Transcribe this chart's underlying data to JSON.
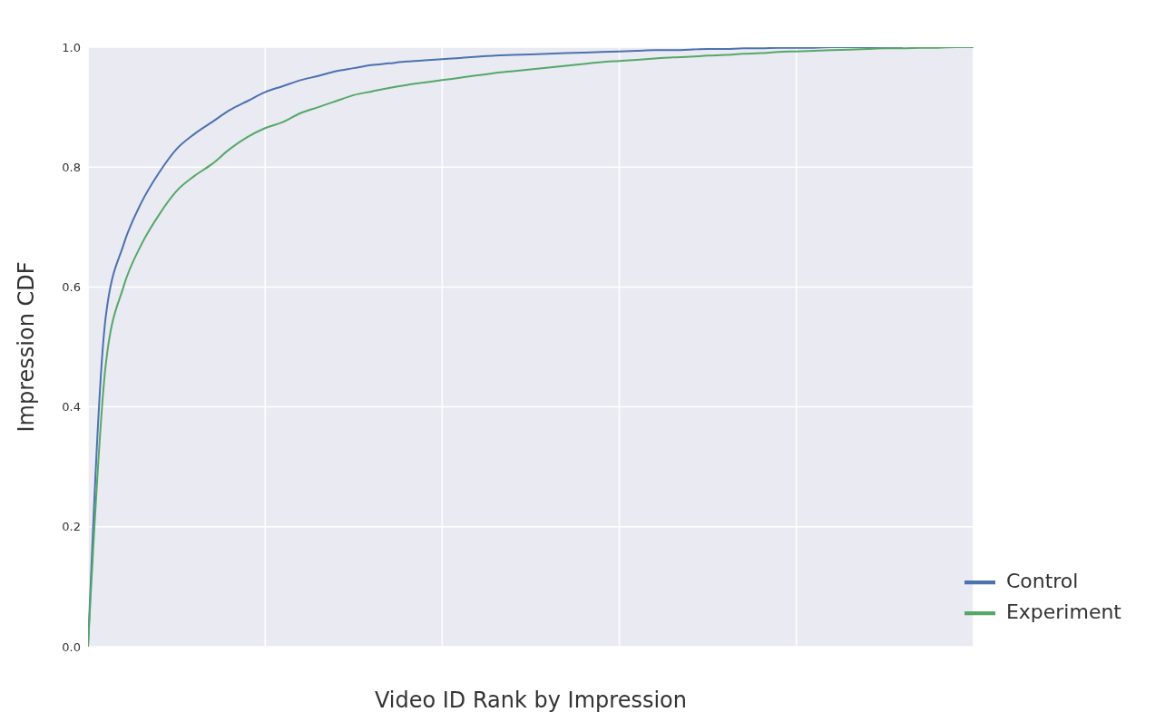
{
  "chart_data": {
    "type": "line",
    "xlabel": "Video ID Rank by Impression",
    "ylabel": "Impression CDF",
    "categories": [
      null,
      null,
      null,
      null,
      null,
      null,
      null,
      null,
      null,
      null,
      null,
      null,
      null,
      null,
      null,
      null,
      null,
      null,
      null,
      null,
      null,
      null,
      null,
      null,
      null,
      null,
      null,
      null,
      null,
      null,
      null,
      null,
      null,
      null,
      null,
      null,
      null,
      null,
      null,
      null,
      null,
      null,
      null,
      null,
      null,
      null,
      null,
      null,
      null,
      null,
      null
    ],
    "series": [
      {
        "name": "Control",
        "color": "#4c72b0",
        "values": [
          0,
          0.55,
          0.67,
          0.74,
          0.79,
          0.83,
          0.855,
          0.875,
          0.895,
          0.91,
          0.925,
          0.935,
          0.945,
          0.952,
          0.96,
          0.965,
          0.97,
          0.973,
          0.976,
          0.978,
          0.98,
          0.982,
          0.984,
          0.986,
          0.987,
          0.988,
          0.989,
          0.99,
          0.991,
          0.992,
          0.993,
          0.994,
          0.995,
          0.995,
          0.996,
          0.997,
          0.997,
          0.998,
          0.998,
          0.999,
          0.999,
          0.999,
          1,
          1,
          1,
          1,
          1,
          null,
          null,
          null,
          null
        ]
      },
      {
        "name": "Experiment",
        "color": "#55a868",
        "values": [
          0,
          0.47,
          0.6,
          0.67,
          0.72,
          0.76,
          0.785,
          0.805,
          0.83,
          0.85,
          0.865,
          0.875,
          0.89,
          0.9,
          0.91,
          0.92,
          0.926,
          0.932,
          0.937,
          0.941,
          0.945,
          0.949,
          0.953,
          0.957,
          0.96,
          0.963,
          0.966,
          0.969,
          0.972,
          0.975,
          0.977,
          0.979,
          0.981,
          0.983,
          0.984,
          0.986,
          0.987,
          0.989,
          0.99,
          0.992,
          0.993,
          0.994,
          0.995,
          0.996,
          0.997,
          0.998,
          0.998,
          0.999,
          0.999,
          1,
          1
        ]
      }
    ],
    "ylim": [
      0,
      1
    ],
    "yticks": [
      {
        "value": 0,
        "label": "0.0"
      },
      {
        "value": 0.2,
        "label": "0.2"
      },
      {
        "value": 0.4,
        "label": "0.4"
      },
      {
        "value": 0.6,
        "label": "0.6"
      },
      {
        "value": 0.8,
        "label": "0.8"
      },
      {
        "value": 1,
        "label": "1.0"
      }
    ],
    "grid": true,
    "legend": "bottom right",
    "marker": "none",
    "line_style": "solid"
  }
}
